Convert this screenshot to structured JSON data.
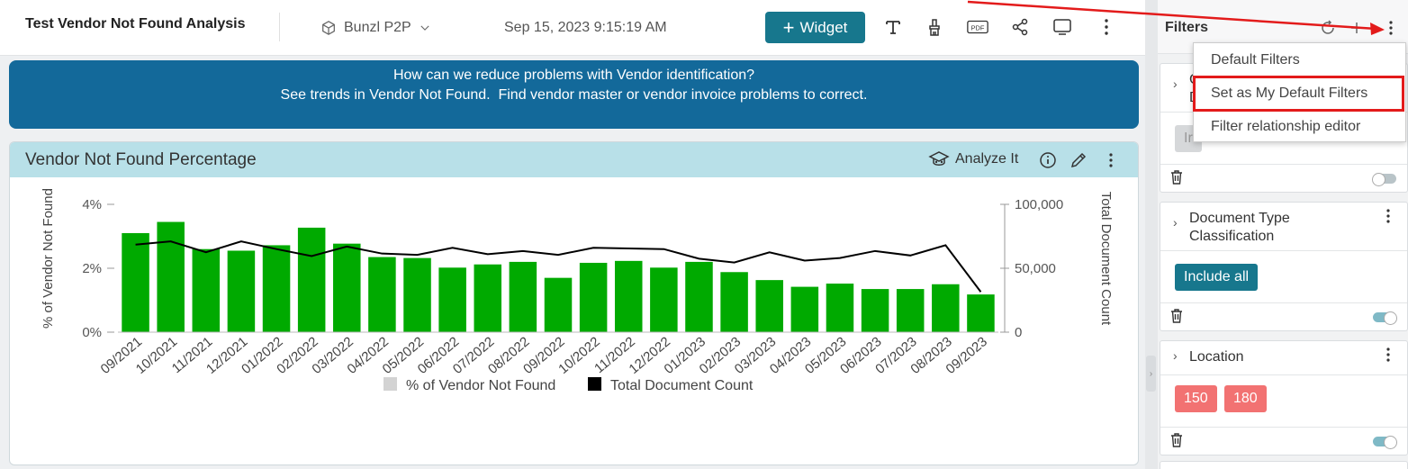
{
  "header": {
    "title": "Test Vendor Not Found Analysis",
    "source": "Bunzl P2P",
    "timestamp": "Sep 15, 2023 9:15:19 AM",
    "widget_button": "Widget",
    "tools": [
      "text-icon",
      "brush-icon",
      "pdf-icon",
      "share-icon",
      "monitor-icon",
      "more-vertical-icon"
    ]
  },
  "banner": {
    "line1": "How can we reduce problems with Vendor identification?",
    "line2": "See trends in Vendor Not Found.  Find vendor master or vendor invoice problems to correct."
  },
  "widget": {
    "title": "Vendor Not Found Percentage",
    "analyze_label": "Analyze It"
  },
  "chart_data": {
    "type": "bar",
    "categories": [
      "09/2021",
      "10/2021",
      "11/2021",
      "12/2021",
      "01/2022",
      "02/2022",
      "03/2022",
      "04/2022",
      "05/2022",
      "06/2022",
      "07/2022",
      "08/2022",
      "09/2022",
      "10/2022",
      "11/2022",
      "12/2022",
      "01/2023",
      "02/2023",
      "03/2023",
      "04/2023",
      "05/2023",
      "06/2023",
      "07/2023",
      "08/2023",
      "09/2023"
    ],
    "series": [
      {
        "name": "% of Vendor Not Found",
        "type": "bar",
        "axis": "left",
        "color": "#00aa00",
        "values": [
          3.1,
          3.45,
          2.6,
          2.55,
          2.72,
          3.27,
          2.77,
          2.35,
          2.32,
          2.02,
          2.12,
          2.2,
          1.7,
          2.17,
          2.23,
          2.02,
          2.2,
          1.88,
          1.63,
          1.42,
          1.52,
          1.35,
          1.35,
          1.5,
          1.18
        ]
      },
      {
        "name": "Total Document Count",
        "type": "line",
        "axis": "right",
        "color": "#000000",
        "values": [
          68500,
          71000,
          62500,
          71000,
          65000,
          59500,
          67000,
          61500,
          60500,
          66000,
          61000,
          63500,
          60500,
          66000,
          65500,
          65000,
          57500,
          54500,
          62500,
          56000,
          58000,
          63500,
          60000,
          68000,
          31500
        ]
      }
    ],
    "yleft": {
      "label": "% of Vendor Not Found",
      "ticks": [
        "0%",
        "2%",
        "4%"
      ],
      "range": [
        0,
        4
      ]
    },
    "yright": {
      "label": "Total Document Count",
      "ticks": [
        "0",
        "50,000",
        "100,000"
      ],
      "range": [
        0,
        100000
      ]
    },
    "legend": [
      {
        "label": "% of Vendor Not Found",
        "color": "#d3d3d3"
      },
      {
        "label": "Total Document Count",
        "color": "#000000"
      }
    ],
    "legend_position": "bottom"
  },
  "panel": {
    "title": "Filters",
    "cards": [
      {
        "title_lines": [
          "C",
          "D"
        ],
        "chips": [
          {
            "label": "Ir",
            "style": "grey"
          }
        ],
        "toggle": "off"
      },
      {
        "title_lines": [
          "Document Type",
          "Classification"
        ],
        "chips": [
          {
            "label": "Include all",
            "style": "teal"
          }
        ],
        "toggle": "on"
      },
      {
        "title_lines": [
          "Location",
          ""
        ],
        "chips": [
          {
            "label": "150",
            "style": "red"
          },
          {
            "label": "180",
            "style": "red"
          }
        ],
        "toggle": "on"
      }
    ]
  },
  "menu": {
    "items": [
      "Default Filters",
      "Set as My Default Filters",
      "Filter relationship editor"
    ]
  },
  "colors": {
    "accent": "#17778d",
    "banner": "#13699a",
    "widget_header": "#b8e0e8",
    "bar": "#00aa00",
    "chip_red": "#f27272",
    "annotation": "#e31b1b"
  }
}
